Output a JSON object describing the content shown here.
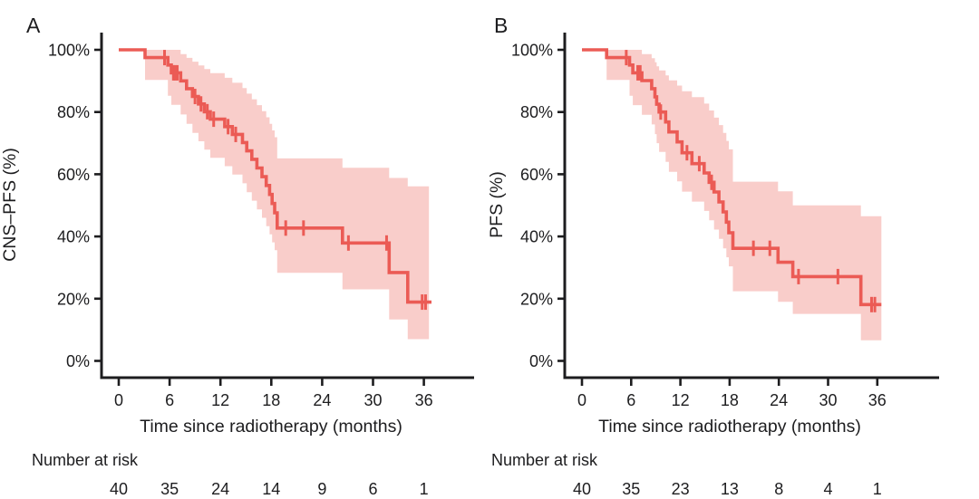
{
  "figure_title": "",
  "colors": {
    "curve": "#EB5B55",
    "ci_band": "#F9CDCA",
    "axis": "#1d1d1f",
    "text": "#1d1d1f",
    "background": "#ffffff"
  },
  "chart_data": [
    {
      "type": "line",
      "subtype": "kaplan-meier-step-curve-with-95CI-band",
      "panel_label": "A",
      "ylabel": "CNS–PFS (%)",
      "xlabel": "Time since radiotherapy (months)",
      "xlim": [
        0,
        42
      ],
      "ylim": [
        0,
        100
      ],
      "x_ticks": [
        0,
        6,
        12,
        18,
        24,
        30,
        36
      ],
      "y_tick_labels": [
        "0%",
        "20%",
        "40%",
        "60%",
        "80%",
        "100%"
      ],
      "grid": false,
      "legend": "none",
      "series": [
        {
          "name": "CNS-PFS",
          "steps": [
            [
              0,
              100
            ],
            [
              3.1,
              97.5
            ],
            [
              5.8,
              95.1
            ],
            [
              6.2,
              92.6
            ],
            [
              7.3,
              90.0
            ],
            [
              8.0,
              87.5
            ],
            [
              8.7,
              85.0
            ],
            [
              9.4,
              82.6
            ],
            [
              10.1,
              80.1
            ],
            [
              10.8,
              77.7
            ],
            [
              12.5,
              75.3
            ],
            [
              13.4,
              72.8
            ],
            [
              14.6,
              70.2
            ],
            [
              15.1,
              67.5
            ],
            [
              15.7,
              64.8
            ],
            [
              16.3,
              62.0
            ],
            [
              16.9,
              59.2
            ],
            [
              17.4,
              56.4
            ],
            [
              17.8,
              53.5
            ],
            [
              18.1,
              50.6
            ],
            [
              18.4,
              47.6
            ],
            [
              18.7,
              42.7
            ],
            [
              26.4,
              37.9
            ],
            [
              31.9,
              28.4
            ],
            [
              34.1,
              18.9
            ]
          ],
          "end_time": 36.9
        }
      ],
      "ci_band": {
        "upper": [
          [
            3.1,
            100
          ],
          [
            7.3,
            98.6
          ],
          [
            8.0,
            97.4
          ],
          [
            8.7,
            96.2
          ],
          [
            9.4,
            95.0
          ],
          [
            10.1,
            93.8
          ],
          [
            10.8,
            92.5
          ],
          [
            12.5,
            91.0
          ],
          [
            13.4,
            89.4
          ],
          [
            14.6,
            87.7
          ],
          [
            15.1,
            85.9
          ],
          [
            15.7,
            84.1
          ],
          [
            16.3,
            82.2
          ],
          [
            16.9,
            80.3
          ],
          [
            17.4,
            78.3
          ],
          [
            17.8,
            76.2
          ],
          [
            18.1,
            74.1
          ],
          [
            18.4,
            71.9
          ],
          [
            18.7,
            65.1
          ],
          [
            26.4,
            62.1
          ],
          [
            31.9,
            58.8
          ],
          [
            34.1,
            56.1
          ]
        ],
        "lower": [
          [
            3.1,
            90.3
          ],
          [
            5.8,
            85.2
          ],
          [
            6.2,
            82.3
          ],
          [
            7.3,
            79.2
          ],
          [
            8.0,
            76.2
          ],
          [
            8.7,
            73.3
          ],
          [
            9.4,
            70.6
          ],
          [
            10.1,
            67.9
          ],
          [
            10.8,
            65.3
          ],
          [
            12.5,
            62.6
          ],
          [
            13.4,
            59.9
          ],
          [
            14.6,
            57.1
          ],
          [
            15.1,
            54.2
          ],
          [
            15.7,
            51.5
          ],
          [
            16.3,
            48.7
          ],
          [
            16.9,
            46.0
          ],
          [
            17.4,
            43.3
          ],
          [
            17.8,
            40.7
          ],
          [
            18.1,
            38.1
          ],
          [
            18.4,
            35.6
          ],
          [
            18.7,
            28.3
          ],
          [
            26.4,
            23.0
          ],
          [
            31.9,
            13.3
          ],
          [
            34.1,
            7.0
          ]
        ],
        "end_time": 36.6
      },
      "censor_marks": [
        [
          5.4,
          97.5
        ],
        [
          6.45,
          92.6
        ],
        [
          6.65,
          92.6
        ],
        [
          6.9,
          92.6
        ],
        [
          9.0,
          85.0
        ],
        [
          9.7,
          82.6
        ],
        [
          10.45,
          80.1
        ],
        [
          11.2,
          77.7
        ],
        [
          12.9,
          75.3
        ],
        [
          13.8,
          72.8
        ],
        [
          19.7,
          42.7
        ],
        [
          21.8,
          42.7
        ],
        [
          27.1,
          37.9
        ],
        [
          31.6,
          37.9
        ],
        [
          35.8,
          18.9
        ],
        [
          36.2,
          18.9
        ]
      ],
      "number_at_risk": {
        "label": "Number at risk",
        "times": [
          0,
          6,
          12,
          18,
          24,
          30,
          36
        ],
        "counts": [
          40,
          35,
          24,
          14,
          9,
          6,
          1
        ]
      }
    },
    {
      "type": "line",
      "subtype": "kaplan-meier-step-curve-with-95CI-band",
      "panel_label": "B",
      "ylabel": "PFS (%)",
      "xlabel": "Time since radiotherapy (months)",
      "xlim": [
        0,
        42
      ],
      "ylim": [
        0,
        100
      ],
      "x_ticks": [
        0,
        6,
        12,
        18,
        24,
        30,
        36
      ],
      "y_tick_labels": [
        "0%",
        "20%",
        "40%",
        "60%",
        "80%",
        "100%"
      ],
      "grid": false,
      "legend": "none",
      "series": [
        {
          "name": "PFS",
          "steps": [
            [
              0,
              100
            ],
            [
              3.0,
              97.5
            ],
            [
              5.8,
              95.1
            ],
            [
              6.2,
              92.6
            ],
            [
              7.3,
              90.1
            ],
            [
              8.5,
              87.5
            ],
            [
              8.9,
              84.9
            ],
            [
              9.1,
              82.5
            ],
            [
              9.4,
              80.0
            ],
            [
              10.2,
              76.8
            ],
            [
              10.6,
              73.6
            ],
            [
              11.6,
              70.4
            ],
            [
              12.2,
              66.9
            ],
            [
              13.4,
              63.4
            ],
            [
              14.9,
              60.4
            ],
            [
              15.5,
              57.4
            ],
            [
              16.1,
              54.3
            ],
            [
              16.7,
              51.1
            ],
            [
              17.2,
              47.9
            ],
            [
              17.6,
              44.6
            ],
            [
              17.9,
              41.2
            ],
            [
              18.4,
              36.2
            ],
            [
              23.9,
              31.7
            ],
            [
              25.7,
              27.1
            ],
            [
              34.0,
              18.1
            ]
          ],
          "end_time": 36.5
        }
      ],
      "ci_band": {
        "upper": [
          [
            3.0,
            100
          ],
          [
            7.3,
            98.6
          ],
          [
            8.5,
            97.3
          ],
          [
            8.9,
            96.0
          ],
          [
            9.1,
            94.7
          ],
          [
            9.4,
            93.4
          ],
          [
            10.2,
            91.8
          ],
          [
            10.6,
            90.2
          ],
          [
            11.6,
            88.5
          ],
          [
            12.2,
            86.7
          ],
          [
            13.4,
            84.8
          ],
          [
            14.9,
            82.7
          ],
          [
            15.5,
            80.5
          ],
          [
            16.1,
            78.2
          ],
          [
            16.7,
            75.8
          ],
          [
            17.2,
            73.3
          ],
          [
            17.6,
            70.7
          ],
          [
            17.9,
            68.0
          ],
          [
            18.4,
            57.6
          ],
          [
            23.9,
            54.5
          ],
          [
            25.7,
            50.0
          ],
          [
            34.0,
            46.5
          ]
        ],
        "lower": [
          [
            3.0,
            90.3
          ],
          [
            5.8,
            85.2
          ],
          [
            6.2,
            82.2
          ],
          [
            7.3,
            79.1
          ],
          [
            8.5,
            76.0
          ],
          [
            8.9,
            72.9
          ],
          [
            9.1,
            70.0
          ],
          [
            9.4,
            67.2
          ],
          [
            10.2,
            64.0
          ],
          [
            10.6,
            60.8
          ],
          [
            11.6,
            57.7
          ],
          [
            12.2,
            54.4
          ],
          [
            13.4,
            51.2
          ],
          [
            14.9,
            48.2
          ],
          [
            15.5,
            45.2
          ],
          [
            16.1,
            42.2
          ],
          [
            16.7,
            39.2
          ],
          [
            17.2,
            36.2
          ],
          [
            17.6,
            33.3
          ],
          [
            17.9,
            30.4
          ],
          [
            18.4,
            22.4
          ],
          [
            23.9,
            19.0
          ],
          [
            25.7,
            15.1
          ],
          [
            34.0,
            6.6
          ]
        ],
        "end_time": 36.5
      },
      "censor_marks": [
        [
          5.4,
          97.5
        ],
        [
          6.8,
          92.6
        ],
        [
          7.1,
          92.6
        ],
        [
          9.6,
          80.0
        ],
        [
          12.8,
          66.9
        ],
        [
          14.3,
          63.4
        ],
        [
          15.8,
          57.4
        ],
        [
          20.9,
          36.2
        ],
        [
          22.9,
          36.2
        ],
        [
          26.4,
          27.1
        ],
        [
          31.2,
          27.1
        ],
        [
          35.3,
          18.1
        ],
        [
          35.7,
          18.1
        ]
      ],
      "number_at_risk": {
        "label": "Number at risk",
        "times": [
          0,
          6,
          12,
          18,
          24,
          30,
          36
        ],
        "counts": [
          40,
          35,
          23,
          13,
          8,
          4,
          1
        ]
      }
    }
  ]
}
